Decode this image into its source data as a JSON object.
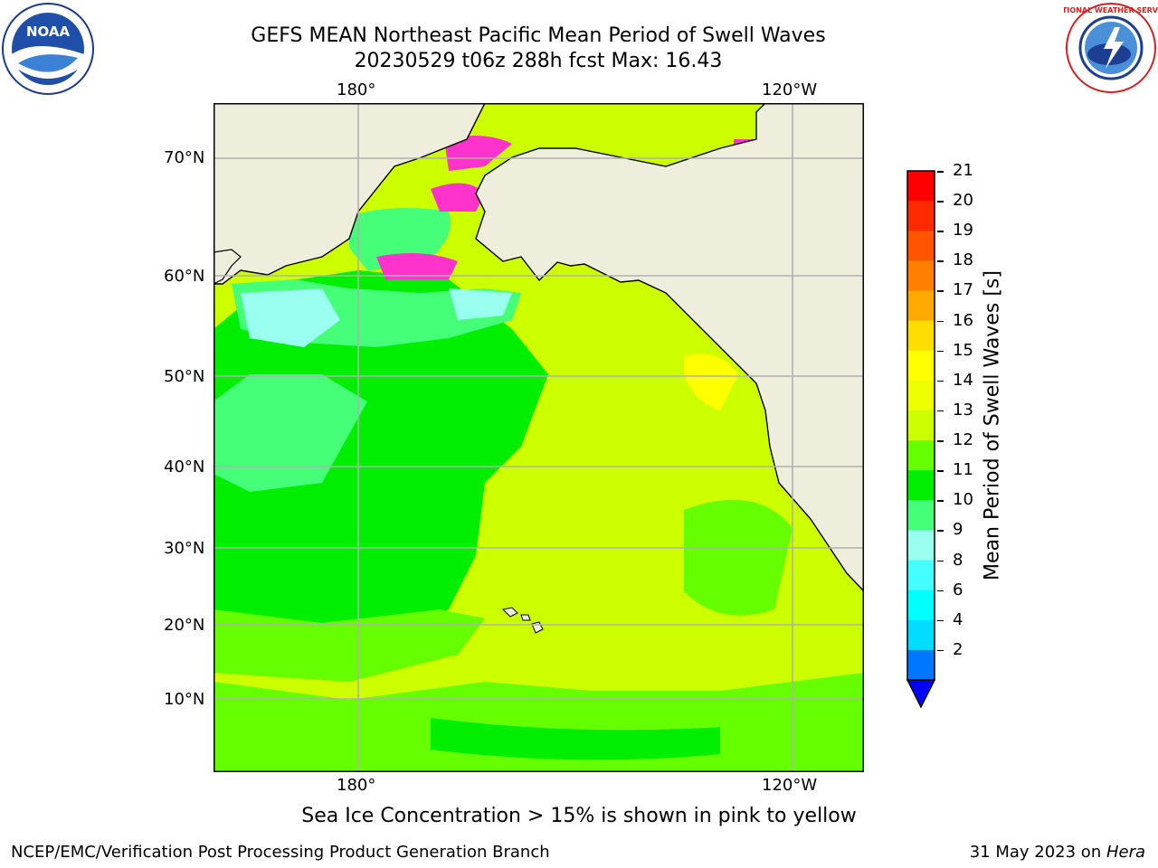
{
  "header": {
    "title_line1": "GEFS MEAN Northeast Pacific Mean Period of Swell Waves",
    "title_line2": "20230529 t06z 288h fcst   Max: 16.43"
  },
  "logos": {
    "left": {
      "name": "noaa-logo",
      "text": "NOAA"
    },
    "right": {
      "name": "nws-logo",
      "text": "NATIONAL WEATHER SERVICE"
    }
  },
  "map": {
    "lon_labels": [
      "180°",
      "120°W"
    ],
    "lat_labels": [
      "70°N",
      "60°N",
      "50°N",
      "40°N",
      "30°N",
      "20°N",
      "10°N"
    ],
    "land_color": "#efeddc",
    "grid_color": "#b0b0b0"
  },
  "colorbar": {
    "label": "Mean Period of Swell Waves [s]",
    "ticks": [
      "21",
      "20",
      "19",
      "18",
      "17",
      "16",
      "15",
      "14",
      "13",
      "12",
      "11",
      "10",
      "9",
      "8",
      "6",
      "4",
      "2"
    ],
    "colors": [
      "#ff0000",
      "#ff2a00",
      "#ff5500",
      "#ff8000",
      "#ffaa00",
      "#ffdd00",
      "#ffff00",
      "#eeff00",
      "#ccff00",
      "#66ff00",
      "#00ee00",
      "#44ff77",
      "#99ffee",
      "#44ffff",
      "#00ffff",
      "#00ddff",
      "#0077ff"
    ],
    "extend_color": "#0000ff"
  },
  "note": "Sea Ice Concentration > 15% is shown in pink to yellow",
  "footer": {
    "left": "NCEP/EMC/Verification Post Processing Product Generation Branch",
    "right_prefix": "31 May 2023 on ",
    "right_host": "Hera"
  }
}
